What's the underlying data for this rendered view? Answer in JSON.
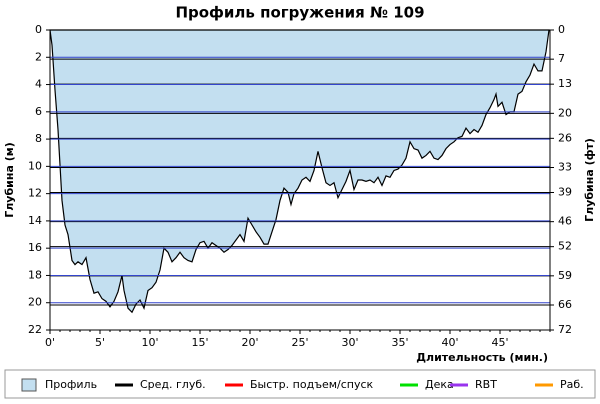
{
  "chart_data": {
    "type": "area",
    "title": "Профиль погружения № 109",
    "ylabel": "Глубина (м)",
    "y2label": "Глубина (фт)",
    "xlabel": "Длительность (мин.)",
    "xlim": [
      0,
      50
    ],
    "ylim": [
      0,
      22
    ],
    "y2lim": [
      0,
      72
    ],
    "xticks": [
      {
        "value": 0,
        "label": "0'"
      },
      {
        "value": 5,
        "label": "5'"
      },
      {
        "value": 10,
        "label": "10'"
      },
      {
        "value": 15,
        "label": "15'"
      },
      {
        "value": 20,
        "label": "20'"
      },
      {
        "value": 25,
        "label": "25'"
      },
      {
        "value": 30,
        "label": "30'"
      },
      {
        "value": 35,
        "label": "35'"
      },
      {
        "value": 40,
        "label": "40'"
      },
      {
        "value": 45,
        "label": "45'"
      }
    ],
    "yticks": [
      0,
      2,
      4,
      6,
      8,
      10,
      12,
      14,
      16,
      18,
      20,
      22
    ],
    "y2ticks": [
      0,
      7,
      13,
      20,
      26,
      33,
      39,
      46,
      52,
      59,
      66,
      72
    ],
    "inverted_y": true,
    "grid": true,
    "x": [
      0,
      0.2,
      0.5,
      0.8,
      1.2,
      1.5,
      1.8,
      2.2,
      2.5,
      2.8,
      3.2,
      3.6,
      4.0,
      4.4,
      4.8,
      5.2,
      5.6,
      6.0,
      6.4,
      6.8,
      7.2,
      7.4,
      7.8,
      8.2,
      8.6,
      9.0,
      9.4,
      9.8,
      10.2,
      10.6,
      11.0,
      11.4,
      11.8,
      12.2,
      12.6,
      13.0,
      13.4,
      13.8,
      14.2,
      14.6,
      15.0,
      15.4,
      15.8,
      16.2,
      16.6,
      17.0,
      17.4,
      17.8,
      18.2,
      18.6,
      19.0,
      19.4,
      19.8,
      20.2,
      20.6,
      21.0,
      21.4,
      21.8,
      22.2,
      22.6,
      23.0,
      23.4,
      23.8,
      24.1,
      24.4,
      24.8,
      25.2,
      25.6,
      26.0,
      26.4,
      26.8,
      27.2,
      27.6,
      28.0,
      28.4,
      28.8,
      29.2,
      29.6,
      30.0,
      30.4,
      30.8,
      31.2,
      31.6,
      32.0,
      32.4,
      32.8,
      33.2,
      33.6,
      34.0,
      34.4,
      34.8,
      35.2,
      35.6,
      36.0,
      36.4,
      36.8,
      37.2,
      37.6,
      38.0,
      38.4,
      38.8,
      39.2,
      39.6,
      40.0,
      40.4,
      40.8,
      41.2,
      41.6,
      42.0,
      42.4,
      42.8,
      43.2,
      43.6,
      44.0,
      44.4,
      44.6,
      44.8,
      45.2,
      45.6,
      46.0,
      46.4,
      46.8,
      47.2,
      47.6,
      48.0,
      48.4,
      48.8,
      49.2,
      49.6,
      49.9
    ],
    "series": [
      {
        "name": "Профиль",
        "color": "#c3dff0",
        "values": [
          0,
          1.1,
          4.4,
          7.3,
          12.5,
          14.3,
          15,
          16.9,
          17.2,
          17,
          17.2,
          16.7,
          18.3,
          19.3,
          19.2,
          19.7,
          19.9,
          20.3,
          19.9,
          19.2,
          18,
          19.1,
          20.4,
          20.7,
          20.1,
          19.8,
          20.4,
          19.1,
          18.9,
          18.5,
          17.6,
          16,
          16.3,
          17,
          16.7,
          16.3,
          16.7,
          16.9,
          17,
          16.1,
          15.6,
          15.5,
          16,
          15.6,
          15.8,
          16,
          16.3,
          16.1,
          15.8,
          15.4,
          15,
          15.5,
          13.8,
          14.3,
          14.8,
          15.2,
          15.7,
          15.7,
          14.8,
          13.9,
          12.5,
          11.6,
          11.9,
          12.8,
          12,
          11.6,
          11,
          10.8,
          11.1,
          10.3,
          8.9,
          10.1,
          11.2,
          11.4,
          11.2,
          12.3,
          11.7,
          11.1,
          10.3,
          11.7,
          11,
          11,
          11.1,
          11,
          11.2,
          10.8,
          11.4,
          10.7,
          10.8,
          10.3,
          10.2,
          9.9,
          9.4,
          8.2,
          8.7,
          8.8,
          9.4,
          9.2,
          8.9,
          9.4,
          9.5,
          9.2,
          8.7,
          8.4,
          8.2,
          7.9,
          7.8,
          7.2,
          7.6,
          7.3,
          7.5,
          7,
          6.2,
          5.7,
          5.1,
          4.7,
          5.6,
          5.3,
          6.2,
          6,
          6,
          4.7,
          4.5,
          3.8,
          3.3,
          2.5,
          3,
          3,
          1.6,
          0
        ]
      }
    ],
    "legend_items": [
      {
        "name": "Сред. глуб.",
        "color": "#000000"
      },
      {
        "name": "Быстр. подъем/спуск",
        "color": "#ff0000"
      },
      {
        "name": "Дека",
        "color": "#00e000"
      },
      {
        "name": "RBT",
        "color": "#9933ee"
      },
      {
        "name": "Раб.",
        "color": "#ff9900"
      }
    ]
  }
}
